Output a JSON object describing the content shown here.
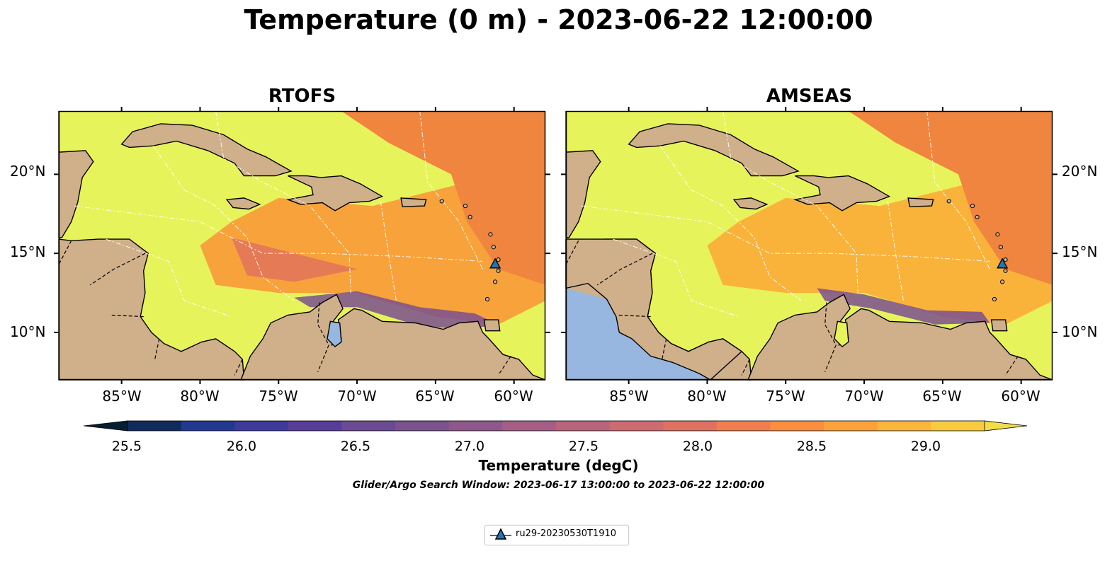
{
  "title": "Temperature (0 m) - 2023-06-22 12:00:00",
  "panels": [
    {
      "title": "RTOFS"
    },
    {
      "title": "AMSEAS"
    }
  ],
  "lat_labels": [
    "20°N",
    "15°N",
    "10°N"
  ],
  "lon_labels": [
    "85°W",
    "80°W",
    "75°W",
    "70°W",
    "65°W",
    "60°W"
  ],
  "map_extent": {
    "lon": [
      -89,
      -58
    ],
    "lat": [
      7,
      24
    ]
  },
  "colorbar": {
    "label": "Temperature (degC)",
    "range": [
      25.25,
      29.5
    ],
    "step": 0.25,
    "ticks": [
      "25.5",
      "26.0",
      "26.5",
      "27.0",
      "27.5",
      "28.0",
      "28.5",
      "29.0"
    ],
    "colors": [
      "#041e33",
      "#102b5c",
      "#22378f",
      "#3c3a9b",
      "#573d99",
      "#6a4b93",
      "#7c5190",
      "#8e588c",
      "#a45e85",
      "#b8647c",
      "#cd6b70",
      "#e0705f",
      "#f27e4f",
      "#fb8e3f",
      "#fca23a",
      "#fbb63b",
      "#f7cb3d",
      "#f1de47"
    ],
    "extend": "both"
  },
  "colors": {
    "land": "#cfb08a",
    "ocean_warm": "#e7f35a",
    "ocean_orange": "#f8a23b",
    "ocean_deep_orange": "#f0853f",
    "ocean_purple": "#7b4f91",
    "pacific": "#97b7e0"
  },
  "search_window": "Glider/Argo Search Window: 2023-06-17 13:00:00 to 2023-06-22 12:00:00",
  "glider": {
    "label": "ru29-20230530T1910",
    "lon": -61.2,
    "lat": 14.3,
    "marker_color": "#1f77b4",
    "icon": "triangle-marker-icon"
  }
}
